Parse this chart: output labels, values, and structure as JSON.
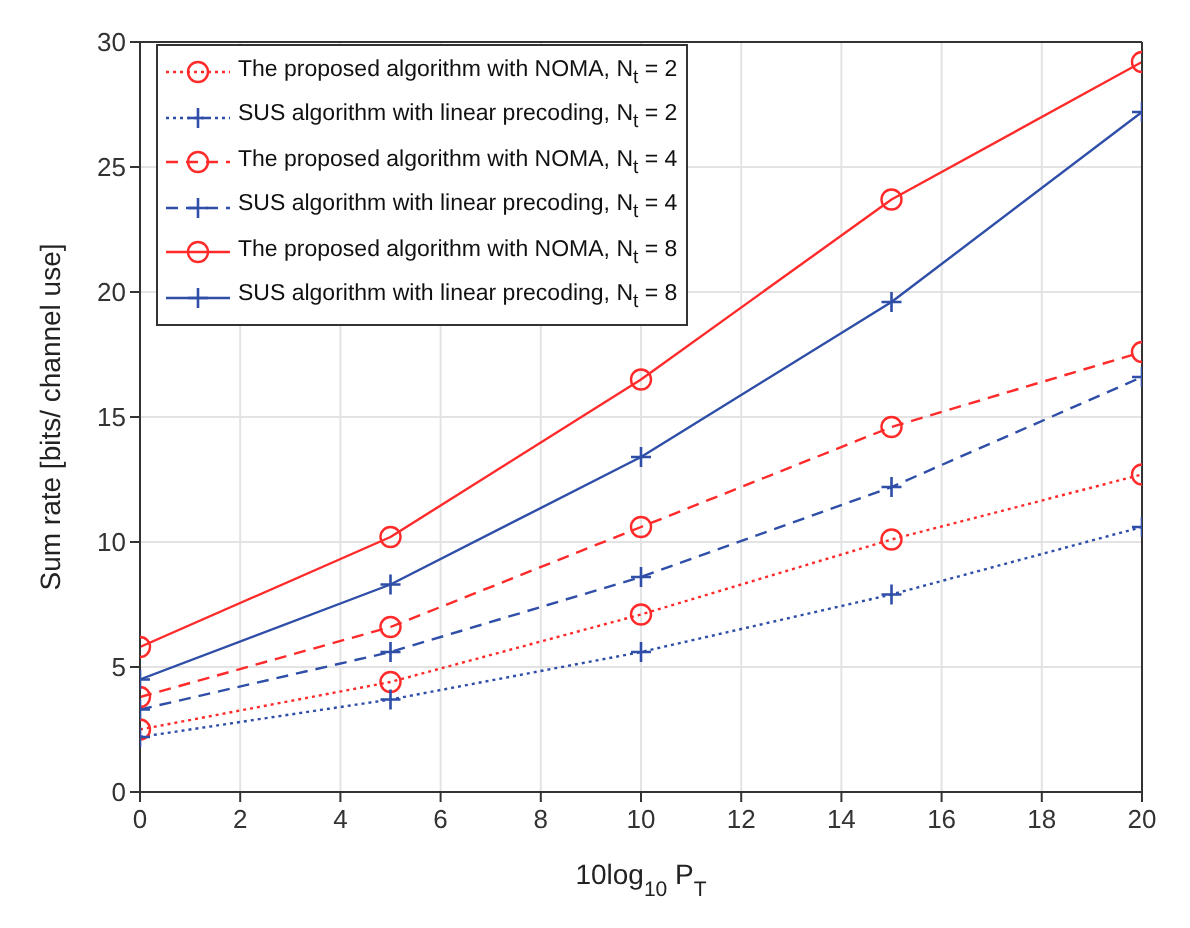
{
  "chart_data": {
    "type": "line",
    "xlabel": "10log$_{10}$ P$_{T}$",
    "ylabel": "Sum rate [bits/ channel use]",
    "x": [
      0,
      5,
      10,
      15,
      20
    ],
    "xlim": [
      0,
      20
    ],
    "xticks": [
      0,
      2,
      4,
      6,
      8,
      10,
      12,
      14,
      16,
      18,
      20
    ],
    "ylim": [
      0,
      30
    ],
    "yticks": [
      0,
      5,
      10,
      15,
      20,
      25,
      30
    ],
    "grid": true,
    "legend": "top left",
    "series": [
      {
        "name": "The proposed algorithm with NOMA,  N$_{t}$ = 2",
        "color": "#ff2a2a",
        "marker": "circle",
        "line_style": "dotted",
        "values": [
          2.5,
          4.4,
          7.1,
          10.1,
          12.7
        ]
      },
      {
        "name": "SUS algorithm with linear precoding, N$_{t}$ = 2",
        "color": "#2e4ea8",
        "marker": "cross",
        "line_style": "dotted",
        "values": [
          2.2,
          3.7,
          5.6,
          7.9,
          10.6
        ]
      },
      {
        "name": "The proposed algorithm with NOMA,  N$_{t}$ = 4",
        "color": "#ff2a2a",
        "marker": "circle",
        "line_style": "dashed",
        "values": [
          3.8,
          6.6,
          10.6,
          14.6,
          17.6
        ]
      },
      {
        "name": "SUS algorithm with linear precoding, N$_{t}$ = 4",
        "color": "#2e4ea8",
        "marker": "cross",
        "line_style": "dashed",
        "values": [
          3.3,
          5.6,
          8.6,
          12.2,
          16.6
        ]
      },
      {
        "name": "The proposed algorithm with NOMA,  N$_{t}$ = 8",
        "color": "#ff2a2a",
        "marker": "circle",
        "line_style": "solid",
        "values": [
          5.8,
          10.2,
          16.5,
          23.7,
          29.2
        ]
      },
      {
        "name": "SUS algorithm with linear precoding, N$_{t}$ = 8",
        "color": "#2e4ea8",
        "marker": "cross",
        "line_style": "solid",
        "values": [
          4.5,
          8.3,
          13.4,
          19.6,
          27.2
        ]
      }
    ]
  }
}
